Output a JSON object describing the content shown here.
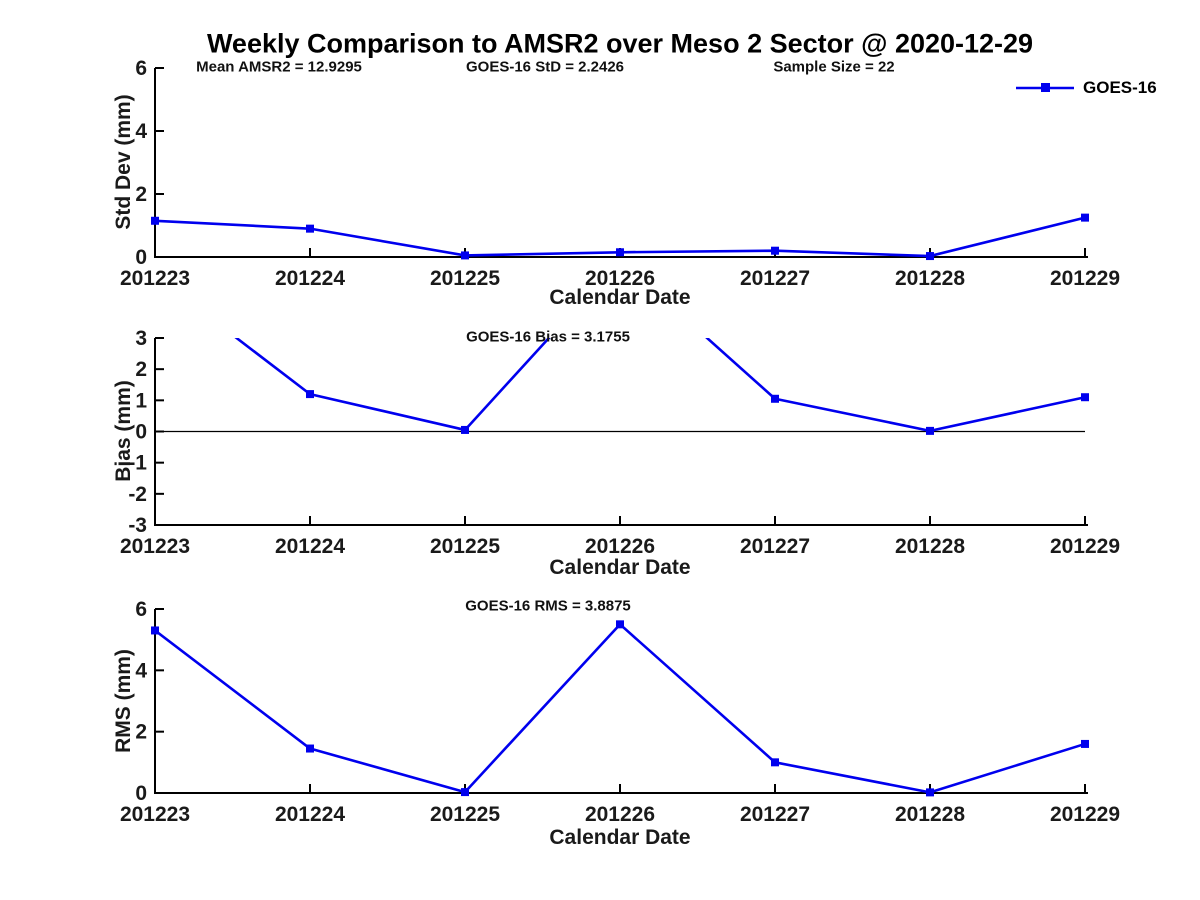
{
  "title": "Weekly Comparison to AMSR2 over Meso 2 Sector @ 2020-12-29",
  "legend": {
    "label": "GOES-16",
    "position": "top-right"
  },
  "colors": {
    "series": "#0000ee",
    "axis": "#000000",
    "text": "#1a1a1a",
    "background": "#ffffff"
  },
  "chart_data": [
    {
      "type": "line",
      "ylabel": "Std Dev (mm)",
      "xlabel": "Calendar Date",
      "categories": [
        "201223",
        "201224",
        "201225",
        "201226",
        "201227",
        "201228",
        "201229"
      ],
      "series": [
        {
          "name": "GOES-16",
          "values": [
            1.15,
            0.9,
            0.05,
            0.15,
            0.2,
            0.03,
            1.25
          ]
        }
      ],
      "ylim": [
        0,
        6
      ],
      "yticks": [
        0,
        2,
        4,
        6
      ],
      "grid": false,
      "legend_position": "top-right",
      "annotations": [
        "Mean AMSR2 = 12.9295",
        "GOES-16 StD = 2.2426",
        "Sample Size = 22"
      ]
    },
    {
      "type": "line",
      "ylabel": "Bias (mm)",
      "xlabel": "Calendar Date",
      "categories": [
        "201223",
        "201224",
        "201225",
        "201226",
        "201227",
        "201228",
        "201229"
      ],
      "series": [
        {
          "name": "GOES-16",
          "values": [
            5.0,
            1.2,
            0.05,
            5.5,
            1.05,
            0.02,
            1.1
          ]
        }
      ],
      "ylim": [
        -3,
        3
      ],
      "yticks": [
        -3,
        -2,
        -1,
        0,
        1,
        2,
        3
      ],
      "grid": false,
      "zero_line": true,
      "clip_note": "values above ylim max are clipped at top of axes",
      "annotations": [
        "GOES-16 Bias  = 3.1755"
      ]
    },
    {
      "type": "line",
      "ylabel": "RMS (mm)",
      "xlabel": "Calendar Date",
      "categories": [
        "201223",
        "201224",
        "201225",
        "201226",
        "201227",
        "201228",
        "201229"
      ],
      "series": [
        {
          "name": "GOES-16",
          "values": [
            5.3,
            1.45,
            0.03,
            5.5,
            1.0,
            0.02,
            1.6
          ]
        }
      ],
      "ylim": [
        0,
        6
      ],
      "yticks": [
        0,
        2,
        4,
        6
      ],
      "grid": false,
      "annotations": [
        "GOES-16 RMS = 3.8875"
      ]
    }
  ]
}
